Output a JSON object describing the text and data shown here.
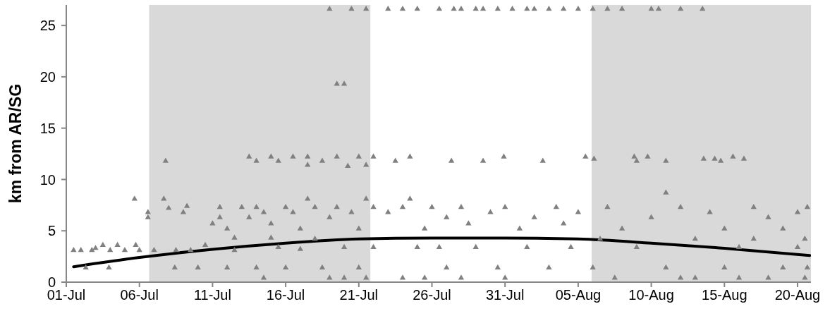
{
  "chart_data": {
    "type": "scatter",
    "ylabel": "km from AR/SG",
    "xlim": [
      "--07-01",
      "--08-20T22:00"
    ],
    "xticks": [
      {
        "value": "--07-01",
        "label": "01-Jul"
      },
      {
        "value": "--07-06",
        "label": "06-Jul"
      },
      {
        "value": "--07-11",
        "label": "11-Jul"
      },
      {
        "value": "--07-16",
        "label": "16-Jul"
      },
      {
        "value": "--07-21",
        "label": "21-Jul"
      },
      {
        "value": "--07-26",
        "label": "26-Jul"
      },
      {
        "value": "--07-31",
        "label": "31-Jul"
      },
      {
        "value": "--08-05",
        "label": "05-Aug"
      },
      {
        "value": "--08-10",
        "label": "10-Aug"
      },
      {
        "value": "--08-15",
        "label": "15-Aug"
      },
      {
        "value": "--08-20",
        "label": "20-Aug"
      }
    ],
    "ylim": [
      0,
      27
    ],
    "yticks": [
      0,
      5,
      10,
      15,
      20,
      25
    ],
    "bands": [
      {
        "axis": "x",
        "from": "--07-06T16:00",
        "to": "--07-21T19:00",
        "color": "#d9d9d9"
      },
      {
        "axis": "x",
        "from": "--08-05T22:00",
        "to": "--08-20T22:00",
        "color": "#d9d9d9"
      }
    ],
    "series": [
      {
        "color": "#808080",
        "marker": "triangle",
        "x": [
          "--07-01T12:00",
          "--07-02",
          "--07-02T08:00",
          "--07-02T18:00",
          "--07-03",
          "--07-03T12:00",
          "--07-03T22:00",
          "--07-04",
          "--07-04T12:00",
          "--07-05",
          "--07-05T18:00",
          "--07-06",
          "--07-05T16:00",
          "--07-06T14:00",
          "--07-06T14:00",
          "--07-07",
          "--07-07T19:00",
          "--07-07T16:00",
          "--07-08",
          "--07-08T12:00",
          "--07-08T10:00",
          "--07-09",
          "--07-09T06:00",
          "--07-09T12:00",
          "--07-10",
          "--07-10T12:00",
          "--07-11",
          "--07-11T12:00",
          "--07-11T12:00",
          "--07-12",
          "--07-12",
          "--07-12T12:00",
          "--07-12T12:00",
          "--07-13",
          "--07-13T12:00",
          "--07-13T12:00",
          "--07-14",
          "--07-14",
          "--07-14",
          "--07-14T12:00",
          "--07-14T12:00",
          "--07-15",
          "--07-15",
          "--07-15",
          "--07-15T12:00",
          "--07-15T12:00",
          "--07-16",
          "--07-16",
          "--07-16T12:00",
          "--07-16T12:00",
          "--07-17",
          "--07-17",
          "--07-17T12:00",
          "--07-17T12:00",
          "--07-17T12:00",
          "--07-18",
          "--07-18",
          "--07-18T12:00",
          "--07-18T12:00",
          "--07-19",
          "--07-19",
          "--07-19",
          "--07-19T12:00",
          "--07-19T12:00",
          "--07-19T12:00",
          "--07-20",
          "--07-20",
          "--07-20",
          "--07-20T06:00",
          "--07-20T12:00",
          "--07-20T12:00",
          "--07-21",
          "--07-21",
          "--07-21",
          "--07-21T12:00",
          "--07-21T12:00",
          "--07-21T12:00",
          "--07-21T12:00",
          "--07-22",
          "--07-22",
          "--07-22",
          "--07-23",
          "--07-23",
          "--07-23T12:00",
          "--07-24",
          "--07-24",
          "--07-24",
          "--07-24T12:00",
          "--07-24T12:00",
          "--07-25",
          "--07-25",
          "--07-25T12:00",
          "--07-25T12:00",
          "--07-26T12:00",
          "--07-26",
          "--07-26T12:00",
          "--07-27",
          "--07-27T12:00",
          "--07-27T08:00",
          "--07-27",
          "--07-28",
          "--07-28",
          "--07-28",
          "--07-28T12:00",
          "--07-29",
          "--07-29",
          "--07-29T12:00",
          "--07-29T12:00",
          "--07-30",
          "--07-30T12:00",
          "--07-30T12:00",
          "--07-30T22:00",
          "--07-31",
          "--07-31",
          "--07-31T12:00",
          "--08-01",
          "--08-01T12:00",
          "--08-01T12:00",
          "--08-02",
          "--08-02",
          "--08-02T14:00",
          "--08-03",
          "--08-03",
          "--08-03T12:00",
          "--08-04",
          "--08-04",
          "--08-04T12:00",
          "--08-05",
          "--08-05",
          "--08-05T12:00",
          "--08-06",
          "--08-06",
          "--08-06T02:00",
          "--08-06T12:00",
          "--08-07",
          "--08-07",
          "--08-07T12:00",
          "--08-08",
          "--08-08",
          "--08-08T20:00",
          "--08-09",
          "--08-09",
          "--08-09T18:00",
          "--08-10",
          "--08-10",
          "--08-10T12:00",
          "--08-11",
          "--08-11",
          "--08-11",
          "--08-12",
          "--08-12",
          "--08-12",
          "--08-13",
          "--08-13",
          "--08-13T12:00",
          "--08-13T14:00",
          "--08-14",
          "--08-14T08:00",
          "--08-14T18:00",
          "--08-15",
          "--08-15",
          "--08-15T14:00",
          "--08-16",
          "--08-16T08:00",
          "--08-16",
          "--08-17",
          "--08-17",
          "--08-18",
          "--08-18",
          "--08-19",
          "--08-19",
          "--08-20",
          "--08-20",
          "--08-20T12:00",
          "--08-20T12:00",
          "--08-20T16:00",
          "--08-20T16:00"
        ],
        "values": [
          3.1,
          3.1,
          1.4,
          3.1,
          3.3,
          3.6,
          1.4,
          3.1,
          3.6,
          3.1,
          3.6,
          3.1,
          8.1,
          6.3,
          6.8,
          3.1,
          11.8,
          8.1,
          7.2,
          3.1,
          1.4,
          6.8,
          7.4,
          3.1,
          1.4,
          3.6,
          5.7,
          7.3,
          6.3,
          5.2,
          1.4,
          4.3,
          3.1,
          7.3,
          6.3,
          12.2,
          11.8,
          7.3,
          1.4,
          0.4,
          6.8,
          5.7,
          4.3,
          12.2,
          3.4,
          11.8,
          7.3,
          1.4,
          12.2,
          6.8,
          5.2,
          3.2,
          12.2,
          8.1,
          11.4,
          7.3,
          4.2,
          1.4,
          11.8,
          0.4,
          6.3,
          26.6,
          19.3,
          7.3,
          12.2,
          19.3,
          0.4,
          3.4,
          11.3,
          26.6,
          6.8,
          5.2,
          12.2,
          1.4,
          26.6,
          0.4,
          8.1,
          11.4,
          7.3,
          3.4,
          12.2,
          26.6,
          6.8,
          11.8,
          0.4,
          7.3,
          26.6,
          12.2,
          8.1,
          3.4,
          26.6,
          5.2,
          0.4,
          26.6,
          7.3,
          3.4,
          1.4,
          26.6,
          11.8,
          6.3,
          26.6,
          7.3,
          0.4,
          5.7,
          26.6,
          3.4,
          11.8,
          26.6,
          6.8,
          26.6,
          1.4,
          12.2,
          0.4,
          7.3,
          26.6,
          5.2,
          26.6,
          3.4,
          26.6,
          6.3,
          11.8,
          26.6,
          1.4,
          7.3,
          26.6,
          5.7,
          3.4,
          26.6,
          6.8,
          12.2,
          26.6,
          1.4,
          12.0,
          4.2,
          26.6,
          7.3,
          0.4,
          26.6,
          5.2,
          12.2,
          11.8,
          3.4,
          12.2,
          26.6,
          6.3,
          26.6,
          11.8,
          8.7,
          1.4,
          26.6,
          0.4,
          7.3,
          0.4,
          4.2,
          26.6,
          12.0,
          6.8,
          12.0,
          11.8,
          1.4,
          5.2,
          12.2,
          3.4,
          12.0,
          0.4,
          7.3,
          4.2,
          6.3,
          0.4,
          1.4,
          5.2,
          3.4,
          6.8,
          4.2,
          0.4,
          7.3,
          1.4
        ]
      },
      {
        "type": "line",
        "color": "#000000",
        "x": [
          "--07-01T12:00",
          "--07-06",
          "--07-11",
          "--07-16",
          "--07-21",
          "--07-26",
          "--07-31",
          "--08-05",
          "--08-10",
          "--08-15",
          "--08-20T20:00"
        ],
        "values": [
          1.5,
          2.4,
          3.2,
          3.8,
          4.2,
          4.3,
          4.3,
          4.2,
          3.8,
          3.3,
          2.6
        ]
      }
    ]
  }
}
